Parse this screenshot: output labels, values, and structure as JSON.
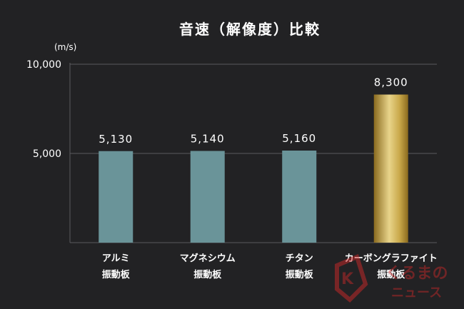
{
  "chart_data": {
    "type": "bar",
    "title": "音速（解像度）比較",
    "unit_label": "(m/s)",
    "categories": [
      [
        "アルミ",
        "振動板"
      ],
      [
        "マグネシウム",
        "振動板"
      ],
      [
        "チタン",
        "振動板"
      ],
      [
        "カーボングラファイト",
        "振動板"
      ]
    ],
    "values": [
      5130,
      5140,
      5160,
      8300
    ],
    "value_labels": [
      "5,130",
      "5,140",
      "5,160",
      "8,300"
    ],
    "ylim": [
      0,
      10000
    ],
    "yticks": [
      5000,
      10000
    ],
    "ytick_labels": [
      "5,000",
      "10,000"
    ],
    "grid": true,
    "colors": {
      "background": "#222224",
      "bar": "#6a9499",
      "highlight_light": "#e8d48a",
      "highlight_dark": "#8a6a1e",
      "grid": "#5a5a5e"
    }
  },
  "watermark": {
    "mark": "K",
    "line1": "くるまの",
    "line2": "ニュース"
  }
}
